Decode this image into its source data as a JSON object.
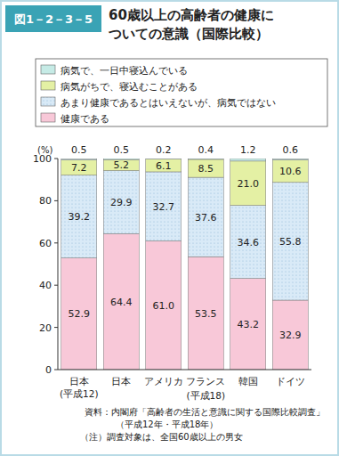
{
  "chart_data": {
    "type": "bar",
    "figure_label": "図1－2－3－5",
    "title": "60歳以上の高齢者の健康についての意識（国際比較）",
    "y_label": "(%)",
    "categories": [
      "日本",
      "日本",
      "アメリカ",
      "フランス",
      "韓国",
      "ドイツ"
    ],
    "group_labels": [
      "(平成12)",
      "(平成18)"
    ],
    "stacked": true,
    "data_labels": true,
    "grid": false,
    "ylim": [
      0,
      100
    ],
    "yticks": [
      0,
      20,
      40,
      60,
      80,
      100
    ],
    "series": [
      {
        "name": "健康である",
        "color": "#f8c8d8",
        "values": [
          52.9,
          64.4,
          61.0,
          53.5,
          43.2,
          32.9
        ],
        "value_labels": [
          "52.9",
          "64.4",
          "61.0",
          "53.5",
          "43.2",
          "32.9"
        ]
      },
      {
        "name": "あまり健康であるとはいえないが、病気ではない",
        "color": "#d9eaf7",
        "values": [
          39.2,
          29.9,
          32.7,
          37.6,
          34.6,
          55.8
        ],
        "value_labels": [
          "39.2",
          "29.9",
          "32.7",
          "37.6",
          "34.6",
          "55.8"
        ]
      },
      {
        "name": "病気がちで、寝込むことがある",
        "color": "#e4f0a4",
        "values": [
          7.2,
          5.2,
          6.1,
          8.5,
          21.0,
          10.6
        ],
        "value_labels": [
          "7.2",
          "5.2",
          "6.1",
          "8.5",
          "21.0",
          "10.6"
        ]
      },
      {
        "name": "病気で、一日中寝込んでいる",
        "color": "#c6ebe6",
        "values": [
          0.5,
          0.5,
          0.2,
          0.4,
          1.2,
          0.6
        ],
        "value_labels": [
          "0.5",
          "0.5",
          "0.2",
          "0.4",
          "1.2",
          "0.6"
        ]
      }
    ],
    "notes": [
      "資料：内閣府「高齢者の生活と意識に関する国際比較調査」",
      "（平成12年・平成18年）",
      "（注）調査対象は、全国60歳以上の男女"
    ]
  }
}
